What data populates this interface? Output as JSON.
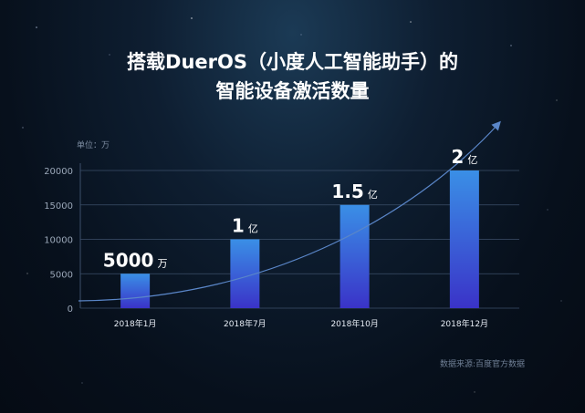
{
  "title_line1": "搭载DuerOS（小度人工智能助手）的",
  "title_line2": "智能设备激活数量",
  "unit_label": "单位：万",
  "source_label": "数据来源:百度官方数据",
  "colors": {
    "bar_top": "#3a8fe6",
    "bar_bottom": "#3a33c8",
    "grid": "#3c4f6a",
    "trend": "#5a86c8"
  },
  "chart_data": {
    "type": "bar",
    "title": "搭载DuerOS（小度人工智能助手）的智能设备激活数量",
    "categories": [
      "2018年1月",
      "2018年7月",
      "2018年10月",
      "2018年12月"
    ],
    "values": [
      5000,
      10000,
      15000,
      20000
    ],
    "data_labels": [
      {
        "num": "5000",
        "unit": "万"
      },
      {
        "num": "1",
        "unit": "亿"
      },
      {
        "num": "1.5",
        "unit": "亿"
      },
      {
        "num": "2",
        "unit": "亿"
      }
    ],
    "y_ticks": [
      0,
      5000,
      10000,
      15000,
      20000
    ],
    "ylim": [
      0,
      20000
    ],
    "ylabel": "单位：万",
    "xlabel": "",
    "grid": true,
    "legend": "none"
  }
}
